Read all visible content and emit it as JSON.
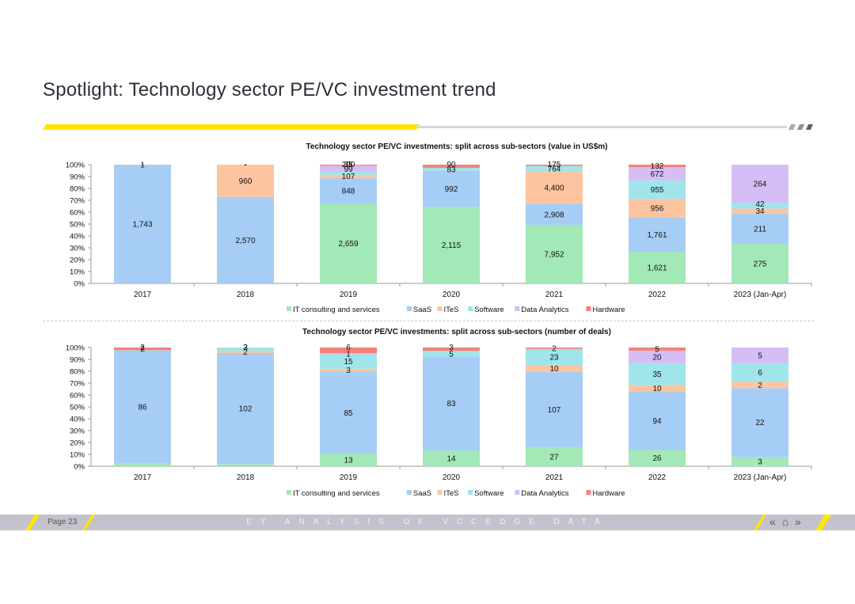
{
  "page": {
    "title": "Spotlight: Technology sector PE/VC investment trend",
    "footer_page": "Page 23",
    "footer_text": "EY ANALYSIS OF VCCEDGE DATA",
    "nav": {
      "prev": "«",
      "home": "⌂",
      "next": "»"
    }
  },
  "colors": {
    "accent_yellow": "#ffe600",
    "IT consulting and services": "#a3e8b7",
    "SaaS": "#a6cdf5",
    "ITeS": "#fdc4a0",
    "Software": "#9fe5ea",
    "Data Analytics": "#d5bdf6",
    "Hardware": "#f4827a"
  },
  "chart_data": [
    {
      "type": "bar",
      "stacked": "percent",
      "title": "Technology sector PE/VC investments: split across sub-sectors (value in US$m)",
      "categories": [
        "2017",
        "2018",
        "2019",
        "2020",
        "2021",
        "2022",
        "2023 (Jan-Apr)"
      ],
      "series": [
        {
          "name": "IT consulting and services",
          "values": [
            0,
            0,
            2659,
            2115,
            7952,
            1621,
            275
          ],
          "labels": [
            "-",
            "-",
            "2,659",
            "2,115",
            "7,952",
            "1,621",
            "275"
          ]
        },
        {
          "name": "SaaS",
          "values": [
            1743,
            2570,
            848,
            992,
            2908,
            1761,
            211
          ],
          "labels": [
            "1,743",
            "2,570",
            "848",
            "992",
            "2,908",
            "1,761",
            "211"
          ]
        },
        {
          "name": "ITeS",
          "values": [
            0,
            960,
            107,
            0,
            4400,
            956,
            34
          ],
          "labels": [
            "",
            "960",
            "107",
            "",
            "4,400",
            "956",
            "34"
          ]
        },
        {
          "name": "Software",
          "values": [
            0,
            0,
            99,
            83,
            764,
            955,
            42
          ],
          "labels": [
            "",
            "",
            "99",
            "83",
            "764",
            "955",
            "42"
          ]
        },
        {
          "name": "Data Analytics",
          "values": [
            0,
            0,
            200,
            0,
            0,
            672,
            264
          ],
          "labels": [
            "",
            "",
            "200",
            "",
            "",
            "672",
            "264"
          ]
        },
        {
          "name": "Hardware",
          "values": [
            1,
            0,
            35,
            90,
            175,
            132,
            0
          ],
          "labels": [
            "1",
            "-",
            "35",
            "90",
            "175",
            "132",
            ""
          ]
        }
      ],
      "y_ticks": [
        "0%",
        "10%",
        "20%",
        "30%",
        "40%",
        "50%",
        "60%",
        "70%",
        "80%",
        "90%",
        "100%"
      ],
      "ylim": [
        0,
        100
      ],
      "legend": "bottom"
    },
    {
      "type": "bar",
      "stacked": "percent",
      "title": "Technology sector PE/VC investments: split across sub-sectors (number of deals)",
      "categories": [
        "2017",
        "2018",
        "2019",
        "2020",
        "2021",
        "2022",
        "2023 (Jan-Apr)"
      ],
      "series": [
        {
          "name": "IT consulting and services",
          "values": [
            2,
            2,
            13,
            14,
            27,
            26,
            3
          ],
          "labels": [
            "2",
            "2",
            "13",
            "14",
            "27",
            "26",
            "3"
          ]
        },
        {
          "name": "SaaS",
          "values": [
            86,
            102,
            85,
            83,
            107,
            94,
            22
          ],
          "labels": [
            "86",
            "102",
            "85",
            "83",
            "107",
            "94",
            "22"
          ]
        },
        {
          "name": "ITeS",
          "values": [
            0,
            2,
            3,
            0,
            10,
            10,
            2
          ],
          "labels": [
            "",
            "2",
            "3",
            "",
            "10",
            "10",
            "2"
          ]
        },
        {
          "name": "Software",
          "values": [
            0,
            3,
            15,
            5,
            23,
            35,
            6
          ],
          "labels": [
            "",
            "3",
            "15",
            "5",
            "23",
            "35",
            "6"
          ]
        },
        {
          "name": "Data Analytics",
          "values": [
            0,
            0,
            1,
            0,
            0,
            20,
            5
          ],
          "labels": [
            "",
            "",
            "1",
            "",
            "",
            "20",
            "5"
          ]
        },
        {
          "name": "Hardware",
          "values": [
            2,
            0,
            6,
            3,
            2,
            5,
            0
          ],
          "labels": [
            "2",
            "",
            "6",
            "3",
            "2",
            "5",
            ""
          ]
        }
      ],
      "y_ticks": [
        "0%",
        "10%",
        "20%",
        "30%",
        "40%",
        "50%",
        "60%",
        "70%",
        "80%",
        "90%",
        "100%"
      ],
      "ylim": [
        0,
        100
      ],
      "legend": "bottom"
    }
  ]
}
